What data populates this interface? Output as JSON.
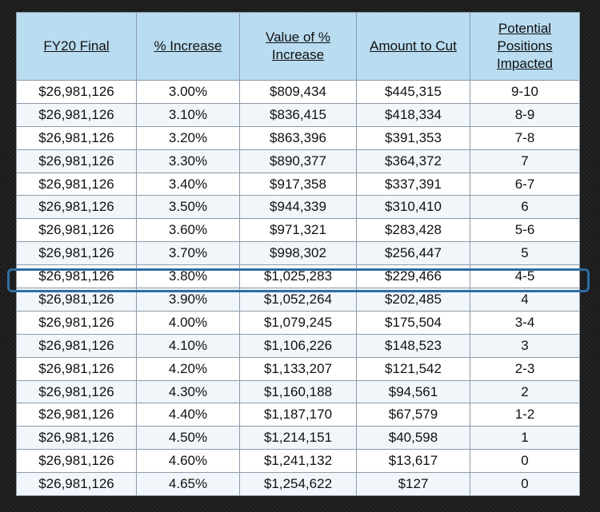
{
  "headers": [
    "FY20 Final",
    "% Increase",
    "Value of % Increase",
    "Amount to Cut",
    "Potential Positions Impacted"
  ],
  "rows": [
    [
      "$26,981,126",
      "3.00%",
      "$809,434",
      "$445,315",
      "9-10"
    ],
    [
      "$26,981,126",
      "3.10%",
      "$836,415",
      "$418,334",
      "8-9"
    ],
    [
      "$26,981,126",
      "3.20%",
      "$863,396",
      "$391,353",
      "7-8"
    ],
    [
      "$26,981,126",
      "3.30%",
      "$890,377",
      "$364,372",
      "7"
    ],
    [
      "$26,981,126",
      "3.40%",
      "$917,358",
      "$337,391",
      "6-7"
    ],
    [
      "$26,981,126",
      "3.50%",
      "$944,339",
      "$310,410",
      "6"
    ],
    [
      "$26,981,126",
      "3.60%",
      "$971,321",
      "$283,428",
      "5-6"
    ],
    [
      "$26,981,126",
      "3.70%",
      "$998,302",
      "$256,447",
      "5"
    ],
    [
      "$26,981,126",
      "3.80%",
      "$1,025,283",
      "$229,466",
      "4-5"
    ],
    [
      "$26,981,126",
      "3.90%",
      "$1,052,264",
      "$202,485",
      "4"
    ],
    [
      "$26,981,126",
      "4.00%",
      "$1,079,245",
      "$175,504",
      "3-4"
    ],
    [
      "$26,981,126",
      "4.10%",
      "$1,106,226",
      "$148,523",
      "3"
    ],
    [
      "$26,981,126",
      "4.20%",
      "$1,133,207",
      "$121,542",
      "2-3"
    ],
    [
      "$26,981,126",
      "4.30%",
      "$1,160,188",
      "$94,561",
      "2"
    ],
    [
      "$26,981,126",
      "4.40%",
      "$1,187,170",
      "$67,579",
      "1-2"
    ],
    [
      "$26,981,126",
      "4.50%",
      "$1,214,151",
      "$40,598",
      "1"
    ],
    [
      "$26,981,126",
      "4.60%",
      "$1,241,132",
      "$13,617",
      "0"
    ],
    [
      "$26,981,126",
      "4.65%",
      "$1,254,622",
      "$127",
      "0"
    ]
  ],
  "highlighted_row_index": 8,
  "colors": {
    "header_bg": "#b9dcf1",
    "highlight_border": "#2e6da3",
    "background": "#1b1b1c"
  }
}
